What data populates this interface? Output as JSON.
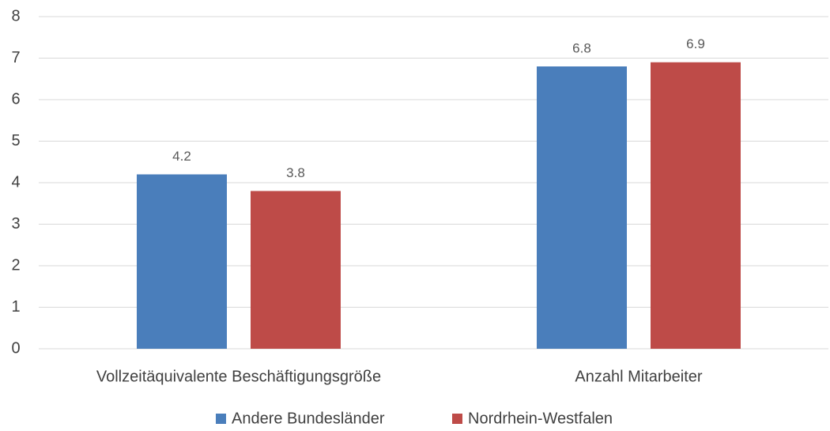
{
  "chart_data": {
    "type": "bar",
    "categories": [
      "Vollzeitäquivalente Beschäftigungsgröße",
      "Anzahl Mitarbeiter"
    ],
    "series": [
      {
        "name": "Andere Bundesländer",
        "color": "#4a7ebb",
        "values": [
          4.2,
          6.8
        ]
      },
      {
        "name": "Nordrhein-Westfalen",
        "color": "#be4b48",
        "values": [
          3.8,
          6.9
        ]
      }
    ],
    "ylim": [
      0,
      8
    ],
    "yticks": [
      0,
      1,
      2,
      3,
      4,
      5,
      6,
      7,
      8
    ],
    "grid": true,
    "legend": "bottom"
  }
}
